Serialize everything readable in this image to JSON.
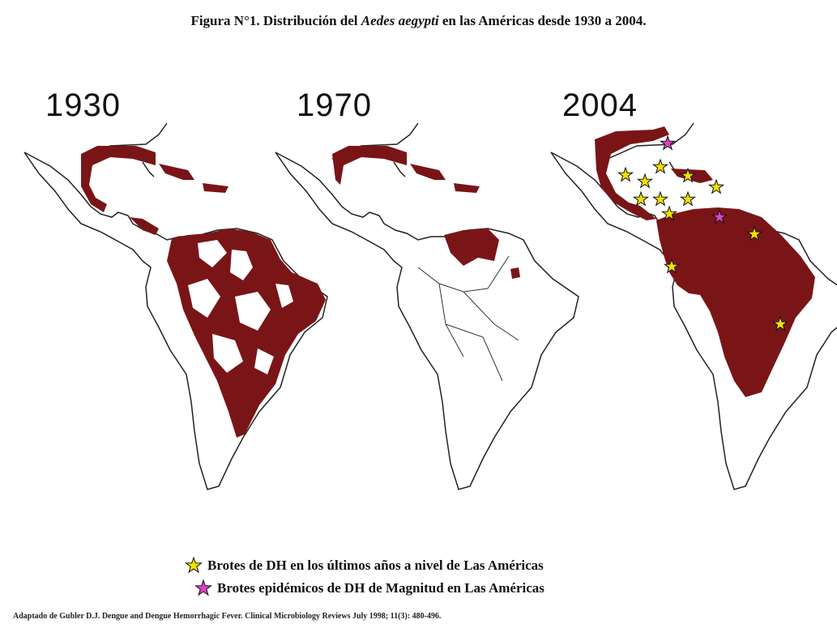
{
  "figure": {
    "title_prefix": "Figura N°1. Distribución del ",
    "title_species": "Aedes aegypti",
    "title_suffix": " en las Américas desde 1930 a 2004."
  },
  "panels": [
    {
      "year": "1930",
      "infested_color": "#7a1517"
    },
    {
      "year": "1970",
      "infested_color": "#7a1517"
    },
    {
      "year": "2004",
      "infested_color": "#7a1517"
    }
  ],
  "legend": [
    {
      "icon": "star-icon",
      "color": "#f2e000",
      "label": "Brotes de DH en los últimos años a nivel de Las Américas"
    },
    {
      "icon": "star-icon",
      "color": "#e040c8",
      "label": "Brotes epidémicos de DH de Magnitud en Las Américas"
    }
  ],
  "source": "Adaptado de Gubler D.J. Dengue and Dengue Hemorrhagic Fever. Clinical Microbiology Reviews July 1998; 11(3): 480-496."
}
